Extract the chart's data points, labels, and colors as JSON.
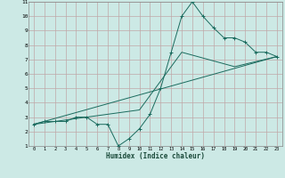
{
  "xlabel": "Humidex (Indice chaleur)",
  "xlim": [
    -0.5,
    23.5
  ],
  "ylim": [
    1,
    11
  ],
  "xticks": [
    0,
    1,
    2,
    3,
    4,
    5,
    6,
    7,
    8,
    9,
    10,
    11,
    12,
    13,
    14,
    15,
    16,
    17,
    18,
    19,
    20,
    21,
    22,
    23
  ],
  "yticks": [
    1,
    2,
    3,
    4,
    5,
    6,
    7,
    8,
    9,
    10,
    11
  ],
  "bg_color": "#cce9e5",
  "grid_color": "#c0a8a8",
  "line_color": "#1a6b5e",
  "line1_x": [
    0,
    1,
    2,
    3,
    4,
    5,
    6,
    7,
    8,
    9,
    10,
    11,
    12,
    13,
    14,
    15,
    16,
    17,
    18,
    19,
    20,
    21,
    22,
    23
  ],
  "line1_y": [
    2.5,
    2.7,
    2.7,
    2.7,
    3.0,
    3.0,
    2.5,
    2.5,
    1.0,
    1.5,
    2.2,
    3.2,
    5.0,
    7.5,
    10.0,
    11.0,
    10.0,
    9.2,
    8.5,
    8.5,
    8.2,
    7.5,
    7.5,
    7.2
  ],
  "line2_x": [
    0,
    23
  ],
  "line2_y": [
    2.5,
    7.2
  ],
  "line3_x": [
    0,
    5,
    10,
    14,
    19,
    23
  ],
  "line3_y": [
    2.5,
    3.0,
    3.5,
    7.5,
    6.5,
    7.2
  ]
}
